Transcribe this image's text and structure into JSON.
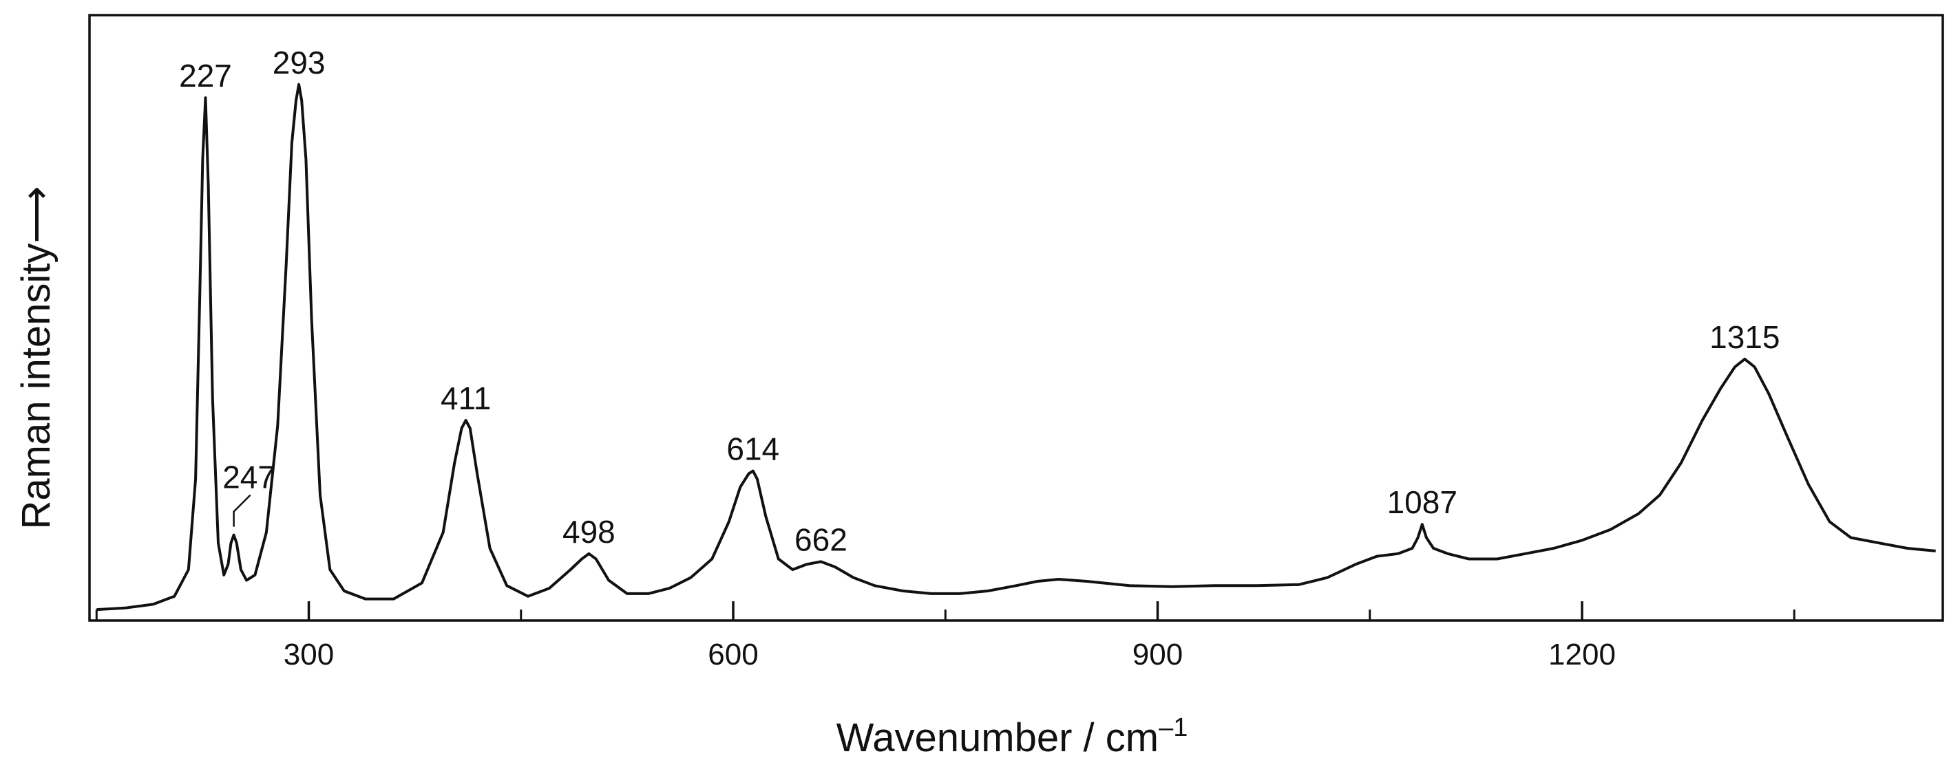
{
  "chart_data": {
    "type": "line",
    "title": "",
    "xlabel": "Wavenumber / cm",
    "xlabel_superscript": "–1",
    "ylabel": "Raman intensity",
    "ylabel_arrow": "⟶",
    "xlim": [
      145,
      1455
    ],
    "ylim": [
      0,
      1
    ],
    "x_ticks": [
      300,
      600,
      900,
      1200
    ],
    "x_minor_ticks": [
      150,
      450,
      750,
      1050,
      1350
    ],
    "grid": false,
    "legend": "none",
    "line_color": "#111111",
    "series": [
      {
        "x": [
          150,
          170,
          190,
          205,
          215,
          220,
          223,
          225,
          227,
          229,
          232,
          236,
          240,
          243,
          245,
          247,
          249,
          252,
          256,
          262,
          270,
          278,
          284,
          288,
          291,
          293,
          295,
          298,
          302,
          308,
          315,
          325,
          340,
          360,
          380,
          395,
          403,
          408,
          411,
          414,
          419,
          428,
          440,
          455,
          470,
          485,
          493,
          498,
          503,
          512,
          525,
          540,
          555,
          570,
          585,
          597,
          605,
          611,
          614,
          617,
          623,
          632,
          642,
          652,
          662,
          672,
          685,
          700,
          720,
          740,
          760,
          780,
          800,
          815,
          830,
          850,
          880,
          910,
          940,
          970,
          1000,
          1020,
          1040,
          1055,
          1070,
          1080,
          1084,
          1087,
          1090,
          1095,
          1105,
          1120,
          1140,
          1160,
          1180,
          1200,
          1220,
          1240,
          1255,
          1270,
          1285,
          1298,
          1308,
          1315,
          1322,
          1332,
          1345,
          1360,
          1375,
          1390,
          1410,
          1430,
          1450
        ],
        "y": [
          0.005,
          0.008,
          0.015,
          0.03,
          0.08,
          0.25,
          0.6,
          0.85,
          0.965,
          0.8,
          0.4,
          0.13,
          0.07,
          0.09,
          0.13,
          0.145,
          0.13,
          0.08,
          0.06,
          0.07,
          0.15,
          0.35,
          0.65,
          0.88,
          0.96,
          0.99,
          0.96,
          0.85,
          0.55,
          0.22,
          0.08,
          0.04,
          0.025,
          0.025,
          0.055,
          0.15,
          0.28,
          0.345,
          0.36,
          0.345,
          0.26,
          0.12,
          0.05,
          0.03,
          0.045,
          0.08,
          0.1,
          0.11,
          0.1,
          0.06,
          0.035,
          0.035,
          0.045,
          0.065,
          0.1,
          0.17,
          0.235,
          0.26,
          0.265,
          0.25,
          0.18,
          0.1,
          0.08,
          0.09,
          0.095,
          0.085,
          0.065,
          0.05,
          0.04,
          0.035,
          0.035,
          0.04,
          0.05,
          0.058,
          0.062,
          0.058,
          0.05,
          0.048,
          0.05,
          0.05,
          0.052,
          0.065,
          0.09,
          0.105,
          0.11,
          0.12,
          0.14,
          0.165,
          0.14,
          0.12,
          0.11,
          0.1,
          0.1,
          0.11,
          0.12,
          0.135,
          0.155,
          0.185,
          0.22,
          0.28,
          0.36,
          0.42,
          0.46,
          0.475,
          0.46,
          0.41,
          0.33,
          0.24,
          0.17,
          0.14,
          0.13,
          0.12,
          0.115
        ]
      }
    ],
    "annotations": [
      {
        "text": "227",
        "x": 227,
        "y": 0.965
      },
      {
        "text": "247",
        "x": 247,
        "y": 0.145
      },
      {
        "text": "293",
        "x": 293,
        "y": 0.99
      },
      {
        "text": "411",
        "x": 411,
        "y": 0.36
      },
      {
        "text": "498",
        "x": 498,
        "y": 0.11
      },
      {
        "text": "614",
        "x": 614,
        "y": 0.265
      },
      {
        "text": "662",
        "x": 662,
        "y": 0.095
      },
      {
        "text": "1087",
        "x": 1087,
        "y": 0.165
      },
      {
        "text": "1315",
        "x": 1315,
        "y": 0.475
      }
    ]
  }
}
